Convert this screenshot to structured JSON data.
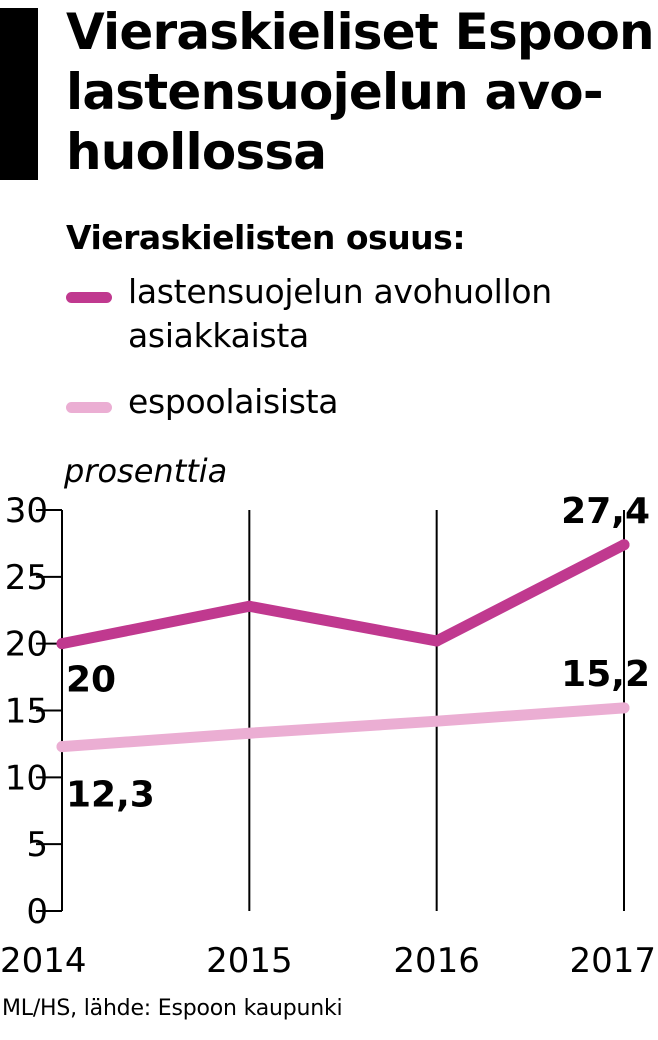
{
  "title_lines": [
    "Vieraskieliset Espoon",
    "lastensuojelun avo-",
    "huollossa"
  ],
  "subtitle": "Vieraskielisten osuus:",
  "legend": [
    {
      "lines": [
        "lastensuojelun avohuollon",
        "asiakkaista"
      ],
      "color": "#c0398f"
    },
    {
      "lines": [
        "espoolaisista"
      ],
      "color": "#ebaed3"
    }
  ],
  "source": "ML/HS, lähde: Espoon kaupunki",
  "chart_data": {
    "type": "line",
    "ylabel": "prosenttia",
    "x": [
      "2014",
      "2015",
      "2016",
      "2017"
    ],
    "ylim": [
      0,
      30
    ],
    "yticks": [
      "0",
      "5",
      "10",
      "15",
      "20",
      "25",
      "30"
    ],
    "grid": "vertical lines at each year",
    "series": [
      {
        "name": "lastensuojelun avohuollon asiakkaista",
        "values": [
          20,
          22.8,
          20.2,
          27.4
        ],
        "color": "#c0398f"
      },
      {
        "name": "espoolaisista",
        "values": [
          12.3,
          13.3,
          14.2,
          15.2
        ],
        "color": "#ebaed3"
      }
    ],
    "data_labels": [
      {
        "series": 0,
        "index": 0,
        "text": "20"
      },
      {
        "series": 0,
        "index": 3,
        "text": "27,4"
      },
      {
        "series": 1,
        "index": 0,
        "text": "12,3"
      },
      {
        "series": 1,
        "index": 3,
        "text": "15,2"
      }
    ]
  }
}
